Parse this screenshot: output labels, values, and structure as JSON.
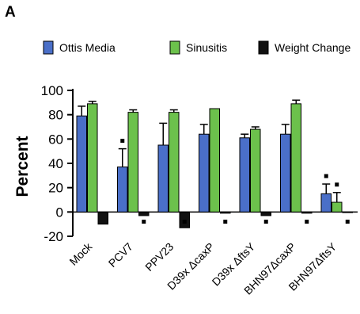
{
  "panel_label": "A",
  "chart_data": {
    "type": "bar",
    "ylabel": "Percent",
    "xlabel": "",
    "ylim": [
      -20,
      100
    ],
    "yticks": [
      -20,
      0,
      20,
      40,
      60,
      80,
      100
    ],
    "categories": [
      "Mock",
      "PCV7",
      "PPV23",
      "D39x ΔcaxP",
      "D39x ΔftsY",
      "BHN97ΔcaxP",
      "BHN97ΔftsY"
    ],
    "series": [
      {
        "name": "Ottis Media",
        "color": "#4a6fc8",
        "values": [
          79,
          37,
          55,
          64,
          61,
          64,
          15
        ],
        "errors": [
          8,
          15,
          18,
          8,
          3,
          8,
          8
        ]
      },
      {
        "name": "Sinusitis",
        "color": "#6cc14c",
        "values": [
          89,
          82,
          82,
          85,
          68,
          89,
          8
        ],
        "errors": [
          2,
          2,
          2,
          0,
          2,
          3,
          8
        ]
      },
      {
        "name": "Weight Change",
        "color": "#111111",
        "values": [
          -10,
          -3,
          -13,
          -1,
          -3,
          -1,
          0
        ],
        "errors": [
          0,
          0,
          0,
          0,
          0,
          0,
          0
        ]
      }
    ],
    "annotations": [
      {
        "category": "PCV7",
        "series": "Ottis Media",
        "symbol": "■"
      },
      {
        "category": "PCV7",
        "series": "Weight Change",
        "symbol": "■"
      },
      {
        "category": "PPV23",
        "series": "Weight Change",
        "symbol": "■"
      },
      {
        "category": "D39x ΔcaxP",
        "series": "Weight Change",
        "symbol": "■"
      },
      {
        "category": "D39x ΔftsY",
        "series": "Weight Change",
        "symbol": "■"
      },
      {
        "category": "BHN97ΔcaxP",
        "series": "Weight Change",
        "symbol": "■"
      },
      {
        "category": "BHN97ΔftsY",
        "series": "Ottis Media",
        "symbol": "■"
      },
      {
        "category": "BHN97ΔftsY",
        "series": "Sinusitis",
        "symbol": "■"
      },
      {
        "category": "BHN97ΔftsY",
        "series": "Weight Change",
        "symbol": "■"
      }
    ],
    "grid": false,
    "legend_position": "top"
  }
}
